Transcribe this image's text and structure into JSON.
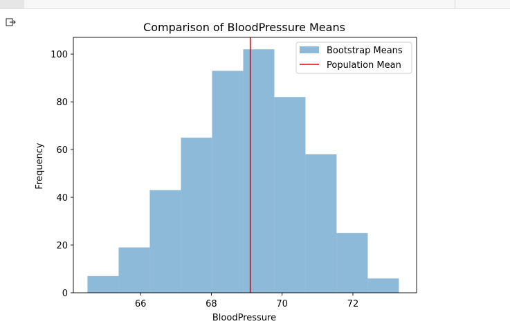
{
  "toolbar": {
    "output_icon": "output-redirect-icon"
  },
  "colors": {
    "bars": "#8ebad9",
    "population_mean": "#e8000b",
    "axis": "#000000"
  },
  "chart_data": {
    "type": "bar",
    "title": "Comparison of BloodPressure Means",
    "xlabel": "BloodPressure",
    "ylabel": "Frequency",
    "xlim": [
      64.1,
      73.8
    ],
    "ylim": [
      0,
      107
    ],
    "xticks": [
      66,
      68,
      70,
      72
    ],
    "yticks": [
      0,
      20,
      40,
      60,
      80,
      100
    ],
    "bins": [
      {
        "x0": 64.5,
        "x1": 65.38,
        "count": 7
      },
      {
        "x0": 65.38,
        "x1": 66.26,
        "count": 19
      },
      {
        "x0": 66.26,
        "x1": 67.14,
        "count": 43
      },
      {
        "x0": 67.14,
        "x1": 68.02,
        "count": 65
      },
      {
        "x0": 68.02,
        "x1": 68.9,
        "count": 93
      },
      {
        "x0": 68.9,
        "x1": 69.78,
        "count": 102
      },
      {
        "x0": 69.78,
        "x1": 70.66,
        "count": 82
      },
      {
        "x0": 70.66,
        "x1": 71.54,
        "count": 58
      },
      {
        "x0": 71.54,
        "x1": 72.42,
        "count": 25
      },
      {
        "x0": 72.42,
        "x1": 73.3,
        "count": 6
      }
    ],
    "population_mean": 69.1,
    "legend": {
      "position": "top-right",
      "entries": [
        "Bootstrap Means",
        "Population Mean"
      ]
    },
    "grid": false
  }
}
